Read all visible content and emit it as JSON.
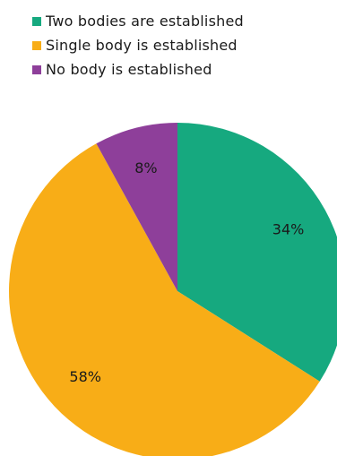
{
  "chart_data": {
    "type": "pie",
    "categories": [
      "Two bodies are established",
      "Single body is established",
      "No body is established"
    ],
    "values": [
      34,
      58,
      8
    ],
    "labels": [
      "34%",
      "58%",
      "8%"
    ],
    "colors": [
      "#16a97f",
      "#f8ad17",
      "#8e3f9a"
    ],
    "legend_position": "top-left"
  }
}
